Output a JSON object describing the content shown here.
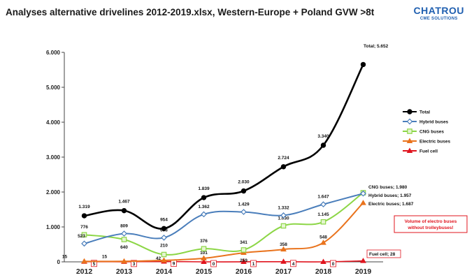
{
  "header": {
    "title": "Analyses alternative drivelines 2012-2019.xlsx, Western-Europe + Poland GVW >8t",
    "logo_line1": "CHATROU",
    "logo_line2": "CME SOLUTIONS"
  },
  "chart_data": {
    "type": "line",
    "title": "",
    "xlabel": "",
    "ylabel": "",
    "categories": [
      "2012",
      "2013",
      "2014",
      "2015",
      "2016",
      "2017",
      "2018",
      "2019"
    ],
    "ylim": [
      0,
      6000
    ],
    "yticks": [
      0,
      1000,
      2000,
      3000,
      4000,
      5000,
      6000
    ],
    "ytick_labels": [
      "0",
      "1.000",
      "2.000",
      "3.000",
      "4.000",
      "5.000",
      "6.000"
    ],
    "legend_position": "right",
    "series": [
      {
        "name": "Total",
        "color": "#000000",
        "marker": "circle",
        "values": [
          1319,
          1467,
          954,
          1839,
          2030,
          2724,
          3340,
          5652
        ],
        "labels": [
          "1.319",
          "1.467",
          "954",
          "1.839",
          "2.030",
          "2.724",
          "3.340",
          "Total; 5.652"
        ]
      },
      {
        "name": "Hybrid buses",
        "color": "#4a7ebb",
        "marker": "diamond",
        "values": [
          523,
          809,
          693,
          1362,
          1429,
          1332,
          1647,
          1957
        ],
        "labels": [
          "523",
          "809",
          "693",
          "1.362",
          "1.429",
          "1.332",
          "1.647",
          "Hybrid buses; 1.957"
        ]
      },
      {
        "name": "CNG buses",
        "color": "#8cd646",
        "marker": "square",
        "values": [
          776,
          640,
          210,
          376,
          341,
          1030,
          1145,
          1980
        ],
        "labels": [
          "776",
          "640",
          "210",
          "376",
          "341",
          "1.030",
          "1.145",
          "CNG buses; 1.980"
        ]
      },
      {
        "name": "Electric buses",
        "color": "#e9731d",
        "marker": "triangle",
        "values": [
          15,
          15,
          42,
          101,
          259,
          358,
          548,
          1687
        ],
        "labels": [
          "15",
          "15",
          "42",
          "101",
          "259",
          "358",
          "548",
          "Electric buses; 1.687"
        ]
      },
      {
        "name": "Fuel cell",
        "color": "#e0141e",
        "marker": "triangle",
        "values": [
          5,
          3,
          9,
          0,
          1,
          4,
          0,
          28
        ],
        "labels": [
          "5",
          "3",
          "9",
          "0",
          "1",
          "4",
          "0",
          "Fuel cell; 28"
        ]
      }
    ],
    "annotation": {
      "line1": "Volume of electro buses",
      "line2": "without trolleybuses!",
      "color": "#e0141e"
    }
  }
}
